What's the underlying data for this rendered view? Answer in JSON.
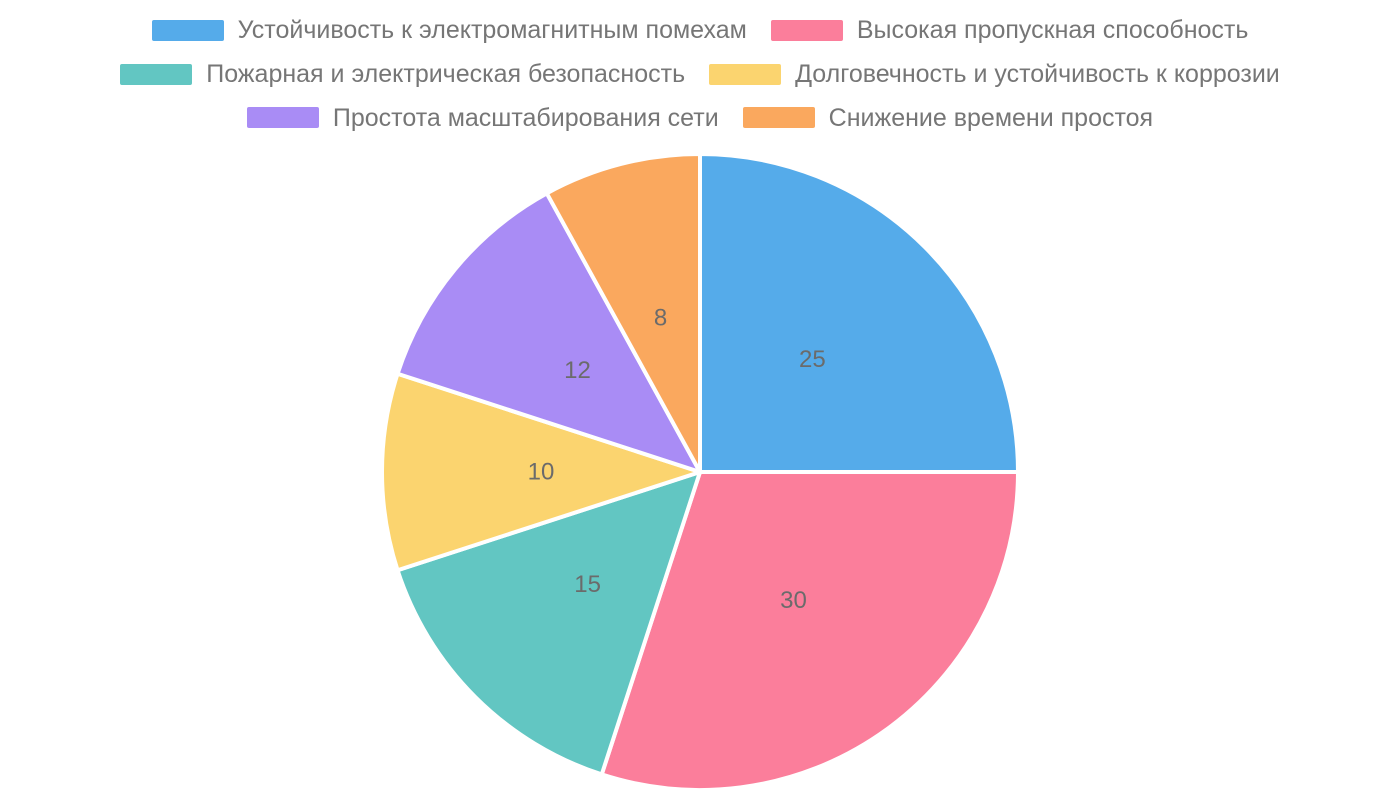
{
  "chart_data": {
    "type": "pie",
    "title": "",
    "legend_position": "top",
    "start_angle_deg": 0,
    "direction": "clockwise",
    "value_labels_shown": true,
    "value_label_color": "#6b6b6b",
    "legend_text_color": "#767676",
    "slice_stroke_color": "#ffffff",
    "background_color": "#ffffff",
    "slices": [
      {
        "label": "Устойчивость к электромагнитным помехам",
        "value": 25,
        "color": "#55ABEA"
      },
      {
        "label": "Высокая пропускная способность",
        "value": 30,
        "color": "#FB7E9B"
      },
      {
        "label": "Пожарная и электрическая безопасность",
        "value": 15,
        "color": "#62C6C2"
      },
      {
        "label": "Долговечность и устойчивость к коррозии",
        "value": 10,
        "color": "#FBD46F"
      },
      {
        "label": "Простота масштабирования сети",
        "value": 12,
        "color": "#A98CF5"
      },
      {
        "label": "Снижение времени простоя",
        "value": 8,
        "color": "#FAA85E"
      }
    ]
  }
}
